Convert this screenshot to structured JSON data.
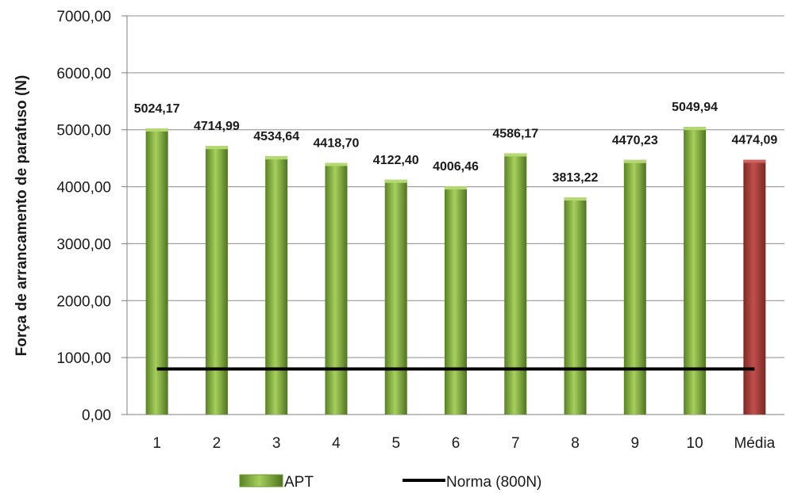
{
  "chart_data": {
    "type": "bar",
    "categories": [
      "1",
      "2",
      "3",
      "4",
      "5",
      "6",
      "7",
      "8",
      "9",
      "10",
      "Média"
    ],
    "values": [
      5024.17,
      4714.99,
      4534.64,
      4418.7,
      4122.4,
      4006.46,
      4586.17,
      3813.22,
      4470.23,
      5049.94,
      4474.09
    ],
    "value_labels": [
      "5024,17",
      "4714,99",
      "4534,64",
      "4418,70",
      "4122,40",
      "4006,46",
      "4586,17",
      "3813,22",
      "4470,23",
      "5049,94",
      "4474,09"
    ],
    "ylabel": "Força de arrancamento de parafuso (N)",
    "xlabel": "",
    "ylim": [
      0,
      7000
    ],
    "ytick_values": [
      0,
      1000,
      2000,
      3000,
      4000,
      5000,
      6000,
      7000
    ],
    "ytick_labels": [
      "0,00",
      "1000,00",
      "2000,00",
      "3000,00",
      "4000,00",
      "5000,00",
      "6000,00",
      "7000,00"
    ],
    "grid": true,
    "series": [
      {
        "name": "APT",
        "color": "#77a332"
      }
    ],
    "highlight": {
      "category": "Média",
      "color": "#a63a36"
    },
    "reference_line": {
      "name": "Norma (800N)",
      "value": 800,
      "color": "#000000"
    },
    "legend_position": "bottom"
  }
}
